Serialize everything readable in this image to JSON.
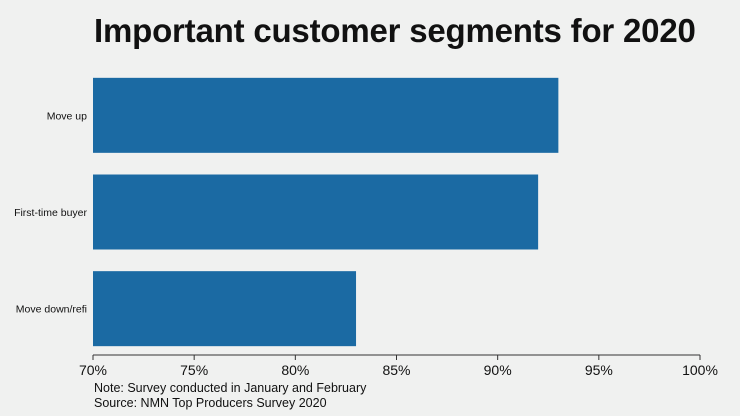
{
  "chart_data": {
    "type": "bar",
    "orientation": "horizontal",
    "title": "Important customer segments for 2020",
    "categories": [
      "Move up",
      "First-time buyer",
      "Move down/refi"
    ],
    "values": [
      93,
      92,
      83
    ],
    "xlim": [
      70,
      100
    ],
    "xticks": [
      "70%",
      "75%",
      "80%",
      "85%",
      "90%",
      "95%",
      "100%"
    ],
    "xtick_values": [
      70,
      75,
      80,
      85,
      90,
      95,
      100
    ],
    "xlabel": "",
    "ylabel": "",
    "grid": false,
    "bar_color": "#1b6aa3"
  },
  "notes": {
    "note": "Note: Survey conducted in January and February",
    "source": "Source: NMN Top Producers Survey 2020"
  }
}
